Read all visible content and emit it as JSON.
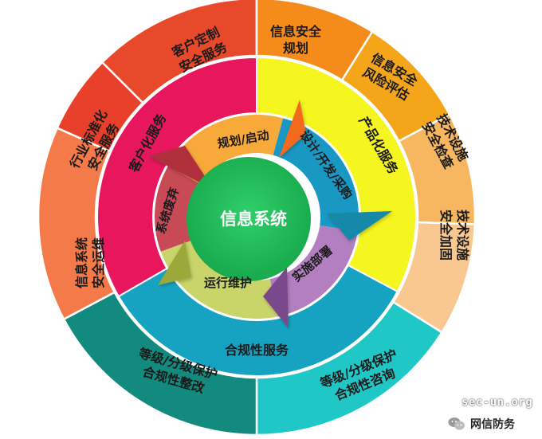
{
  "center": {
    "label": "信息系统"
  },
  "cycle": [
    {
      "id": "plan",
      "label": "规划/启动"
    },
    {
      "id": "design",
      "label": "设计/开发/采购"
    },
    {
      "id": "deploy",
      "label": "实施部署"
    },
    {
      "id": "operate",
      "label": "运行维护"
    },
    {
      "id": "retire",
      "label": "系统废弃"
    }
  ],
  "services": [
    {
      "id": "customized",
      "label": "客户化服务",
      "color": "#e8175d"
    },
    {
      "id": "product",
      "label": "产品化服务",
      "color": "#f5f520"
    },
    {
      "id": "compliance",
      "label": "合规性服务",
      "color": "#16a3c2"
    }
  ],
  "outer": [
    {
      "id": "custom-security",
      "lines": [
        "客户定制",
        "安全服务"
      ],
      "color": "#e8492b"
    },
    {
      "id": "sec-planning",
      "lines": [
        "信息安全",
        "规划"
      ],
      "color": "#f58b1a"
    },
    {
      "id": "risk-assess",
      "lines": [
        "信息安全",
        "风险评估"
      ],
      "color": "#f5a51a"
    },
    {
      "id": "tech-check",
      "lines": [
        "技术设施",
        "安全检查"
      ],
      "color": "#f7b660"
    },
    {
      "id": "tech-harden",
      "lines": [
        "技术设施",
        "安全加固"
      ],
      "color": "#f8c890"
    },
    {
      "id": "compliance-consult",
      "lines": [
        "等级/分级保护",
        "合规性咨询"
      ],
      "color": "#20c7c7"
    },
    {
      "id": "compliance-fix",
      "lines": [
        "等级/分级保护",
        "合规性整改"
      ],
      "color": "#138a7e"
    },
    {
      "id": "ops",
      "lines": [
        "信息系统",
        "安全运维"
      ],
      "color": "#f57a4a"
    },
    {
      "id": "industry-standard",
      "lines": [
        "行业标准化",
        "安全服务"
      ],
      "color": "#e8402a"
    }
  ],
  "watermark": {
    "site": "sec-un.org",
    "name": "网信防务"
  }
}
